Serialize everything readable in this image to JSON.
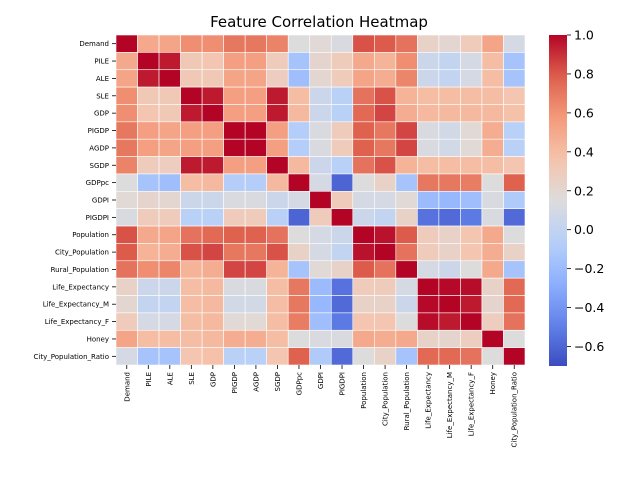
{
  "chart_data": {
    "type": "heatmap",
    "title": "Feature Correlation Heatmap",
    "xlabel": "",
    "ylabel": "",
    "labels": [
      "Demand",
      "PILE",
      "ALE",
      "SLE",
      "GDP",
      "PIGDP",
      "AGDP",
      "SGDP",
      "GDPpc",
      "GDPI",
      "PIGDPI",
      "Population",
      "City_Population",
      "Rural_Population",
      "Life_Expectancy",
      "Life_Expectancy_M",
      "Life_Expectancy_F",
      "Honey",
      "City_Population_Ratio"
    ],
    "matrix": [
      [
        1.0,
        0.5,
        0.52,
        0.62,
        0.62,
        0.7,
        0.7,
        0.66,
        0.15,
        0.18,
        0.12,
        0.82,
        0.8,
        0.72,
        0.25,
        0.2,
        0.3,
        0.52,
        0.1
      ],
      [
        0.5,
        1.0,
        0.95,
        0.32,
        0.35,
        0.55,
        0.55,
        0.3,
        -0.15,
        0.22,
        0.3,
        0.5,
        0.45,
        0.62,
        0.05,
        0.0,
        0.1,
        0.4,
        -0.15
      ],
      [
        0.52,
        0.95,
        1.0,
        0.32,
        0.32,
        0.52,
        0.52,
        0.28,
        -0.18,
        0.2,
        0.3,
        0.52,
        0.48,
        0.65,
        0.05,
        0.0,
        0.1,
        0.4,
        -0.15
      ],
      [
        0.62,
        0.32,
        0.32,
        1.0,
        0.95,
        0.55,
        0.55,
        0.95,
        0.4,
        0.05,
        -0.05,
        0.72,
        0.82,
        0.45,
        0.4,
        0.4,
        0.4,
        0.4,
        0.35
      ],
      [
        0.62,
        0.35,
        0.32,
        0.95,
        1.0,
        0.55,
        0.55,
        0.95,
        0.42,
        0.05,
        -0.05,
        0.75,
        0.85,
        0.48,
        0.42,
        0.42,
        0.42,
        0.42,
        0.38
      ],
      [
        0.7,
        0.55,
        0.52,
        0.55,
        0.55,
        1.0,
        1.0,
        0.55,
        -0.08,
        0.12,
        0.3,
        0.78,
        0.7,
        0.85,
        0.12,
        0.08,
        0.18,
        0.48,
        -0.05
      ],
      [
        0.7,
        0.55,
        0.52,
        0.55,
        0.55,
        1.0,
        1.0,
        0.55,
        -0.08,
        0.12,
        0.3,
        0.78,
        0.7,
        0.85,
        0.12,
        0.08,
        0.18,
        0.48,
        -0.05
      ],
      [
        0.66,
        0.3,
        0.28,
        0.95,
        0.95,
        0.55,
        0.55,
        1.0,
        0.42,
        0.05,
        -0.05,
        0.72,
        0.82,
        0.45,
        0.4,
        0.4,
        0.4,
        0.4,
        0.35
      ],
      [
        0.15,
        -0.15,
        -0.18,
        0.4,
        0.42,
        -0.08,
        -0.08,
        0.42,
        1.0,
        0.1,
        -0.6,
        0.15,
        0.25,
        -0.15,
        0.7,
        0.7,
        0.68,
        0.15,
        0.78
      ],
      [
        0.18,
        0.22,
        0.2,
        0.05,
        0.05,
        0.12,
        0.12,
        0.05,
        0.1,
        1.0,
        0.3,
        0.1,
        0.1,
        0.18,
        -0.2,
        -0.22,
        -0.18,
        0.12,
        -0.1
      ],
      [
        0.12,
        0.3,
        0.3,
        -0.05,
        -0.05,
        0.3,
        0.3,
        -0.05,
        -0.6,
        0.3,
        1.0,
        0.05,
        0.0,
        0.25,
        -0.55,
        -0.58,
        -0.52,
        0.12,
        -0.58
      ],
      [
        0.82,
        0.5,
        0.52,
        0.72,
        0.75,
        0.78,
        0.78,
        0.72,
        0.15,
        0.1,
        0.05,
        1.0,
        0.97,
        0.8,
        0.3,
        0.25,
        0.35,
        0.5,
        0.15
      ],
      [
        0.8,
        0.45,
        0.48,
        0.82,
        0.85,
        0.7,
        0.7,
        0.82,
        0.25,
        0.1,
        0.0,
        0.97,
        1.0,
        0.72,
        0.3,
        0.25,
        0.35,
        0.48,
        0.25
      ],
      [
        0.72,
        0.62,
        0.65,
        0.45,
        0.48,
        0.85,
        0.85,
        0.45,
        -0.15,
        0.18,
        0.25,
        0.8,
        0.72,
        1.0,
        0.1,
        0.05,
        0.15,
        0.5,
        -0.15
      ],
      [
        0.25,
        0.05,
        0.05,
        0.4,
        0.42,
        0.12,
        0.12,
        0.4,
        0.7,
        -0.2,
        -0.55,
        0.3,
        0.3,
        0.1,
        1.0,
        0.99,
        0.98,
        0.25,
        0.75
      ],
      [
        0.2,
        0.0,
        0.0,
        0.4,
        0.42,
        0.08,
        0.08,
        0.4,
        0.7,
        -0.22,
        -0.58,
        0.25,
        0.25,
        0.05,
        0.99,
        1.0,
        0.95,
        0.22,
        0.75
      ],
      [
        0.3,
        0.1,
        0.1,
        0.4,
        0.42,
        0.18,
        0.18,
        0.4,
        0.68,
        -0.18,
        -0.52,
        0.35,
        0.35,
        0.15,
        0.98,
        0.95,
        1.0,
        0.28,
        0.72
      ],
      [
        0.52,
        0.4,
        0.4,
        0.4,
        0.42,
        0.48,
        0.48,
        0.4,
        0.15,
        0.12,
        0.12,
        0.5,
        0.48,
        0.5,
        0.25,
        0.22,
        0.28,
        1.0,
        0.15
      ],
      [
        0.1,
        -0.15,
        -0.15,
        0.35,
        0.38,
        -0.05,
        -0.05,
        0.35,
        0.78,
        -0.1,
        -0.58,
        0.15,
        0.25,
        -0.15,
        0.75,
        0.75,
        0.72,
        0.15,
        1.0
      ]
    ],
    "vmin": -0.7,
    "vmax": 1.0,
    "colormap": "coolwarm",
    "colorbar_ticks": [
      1.0,
      0.8,
      0.6,
      0.4,
      0.2,
      0.0,
      -0.2,
      -0.4,
      -0.6
    ],
    "colorbar_tick_labels": [
      "1.0",
      "0.8",
      "0.6",
      "0.4",
      "0.2",
      "0.0",
      "−0.2",
      "−0.4",
      "−0.6"
    ],
    "grid": false,
    "cell_borders": "white"
  }
}
